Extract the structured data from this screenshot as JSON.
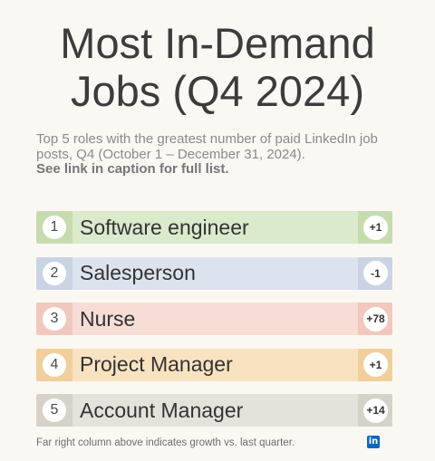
{
  "title_line1": "Most In-Demand",
  "title_line2": "Jobs (Q4 2024)",
  "subtitle": "Top 5 roles with the greatest number of paid LinkedIn job posts, Q4 (October 1 – December 31, 2024).",
  "subtitle_bold": "See link in caption for full list.",
  "rows": [
    {
      "rank": "1",
      "label": "Software engineer",
      "growth": "+1",
      "color": "#dbe9cc",
      "accent": "#c6dcae"
    },
    {
      "rank": "2",
      "label": "Salesperson",
      "growth": "-1",
      "color": "#dde3ee",
      "accent": "#c9d3e4"
    },
    {
      "rank": "3",
      "label": "Nurse",
      "growth": "+78",
      "color": "#f7ddd6",
      "accent": "#f0c8bd"
    },
    {
      "rank": "4",
      "label": "Project Manager",
      "growth": "+1",
      "color": "#f8e2c0",
      "accent": "#f1cf9c"
    },
    {
      "rank": "5",
      "label": "Account Manager",
      "growth": "+14",
      "color": "#e5e2dc",
      "accent": "#d6d2ca"
    }
  ],
  "footer": "Far right column above indicates growth vs. last quarter.",
  "logo_text": "in",
  "icons": {
    "logo": "linkedin-icon"
  }
}
